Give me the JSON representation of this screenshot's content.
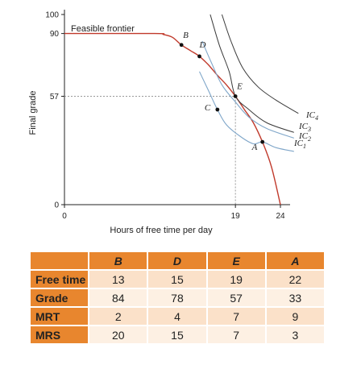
{
  "chart_data": {
    "type": "line",
    "ylabel": "Final grade",
    "xlabel": "Hours of free time per day",
    "xlim": [
      0,
      24
    ],
    "ylim": [
      0,
      100
    ],
    "x_ticks": [
      "0",
      "19",
      "24"
    ],
    "y_ticks": [
      "0",
      "57",
      "90",
      "100"
    ],
    "series": [
      {
        "name": "Feasible frontier",
        "points": [
          [
            0,
            90
          ],
          [
            10,
            90
          ],
          [
            11,
            89.5
          ],
          [
            12,
            88
          ],
          [
            13,
            84
          ],
          [
            14,
            81
          ],
          [
            15,
            78
          ],
          [
            16,
            73.5
          ],
          [
            17,
            68
          ],
          [
            18,
            63
          ],
          [
            19,
            57
          ],
          [
            20,
            50
          ],
          [
            21,
            43
          ],
          [
            22,
            33
          ],
          [
            23,
            20
          ],
          [
            24,
            0
          ]
        ]
      },
      {
        "name": "IC1",
        "points": [
          [
            15,
            70
          ],
          [
            16,
            60
          ],
          [
            17,
            50
          ],
          [
            18,
            42
          ],
          [
            19.5,
            36
          ],
          [
            21,
            32
          ],
          [
            22,
            33
          ],
          [
            23.5,
            30
          ],
          [
            25.5,
            28
          ]
        ]
      },
      {
        "name": "IC2",
        "points": [
          [
            15.3,
            86
          ],
          [
            16.3,
            75
          ],
          [
            17.5,
            63
          ],
          [
            19,
            54
          ],
          [
            20.5,
            46
          ],
          [
            22.5,
            40
          ],
          [
            25.5,
            35
          ]
        ]
      },
      {
        "name": "IC3",
        "points": [
          [
            16.2,
            100
          ],
          [
            17.2,
            84
          ],
          [
            18.3,
            70
          ],
          [
            19,
            57
          ],
          [
            20.5,
            50
          ],
          [
            22.5,
            43
          ],
          [
            25.5,
            38
          ]
        ]
      },
      {
        "name": "IC4",
        "points": [
          [
            17.5,
            100
          ],
          [
            18.5,
            86
          ],
          [
            19.8,
            72
          ],
          [
            21.5,
            62
          ],
          [
            23.5,
            55
          ],
          [
            26,
            48
          ]
        ]
      }
    ],
    "points": [
      {
        "label": "B",
        "x": 13,
        "y": 84
      },
      {
        "label": "D",
        "x": 15,
        "y": 78
      },
      {
        "label": "E",
        "x": 19,
        "y": 57
      },
      {
        "label": "C",
        "x": 17,
        "y": 50
      },
      {
        "label": "A",
        "x": 22,
        "y": 33
      }
    ],
    "ic_labels": [
      "IC",
      "IC",
      "IC",
      "IC"
    ],
    "ic_subscripts": [
      "1",
      "2",
      "3",
      "4"
    ],
    "guides": [
      {
        "x": 19,
        "y": 57
      }
    ]
  },
  "table": {
    "columns": [
      "B",
      "D",
      "E",
      "A"
    ],
    "rows": [
      {
        "label": "Free time",
        "values": [
          "13",
          "15",
          "19",
          "22"
        ]
      },
      {
        "label": "Grade",
        "values": [
          "84",
          "78",
          "57",
          "33"
        ]
      },
      {
        "label": "MRT",
        "values": [
          "2",
          "4",
          "7",
          "9"
        ]
      },
      {
        "label": "MRS",
        "values": [
          "20",
          "15",
          "7",
          "3"
        ]
      }
    ]
  },
  "colors": {
    "frontier": "#c0392b",
    "indifference_light": "#7fa6c9",
    "indifference_dark": "#3a3a3a",
    "table_header": "#e8862e",
    "table_cell_odd": "#fbe1c9",
    "table_cell_even": "#fdf0e3"
  }
}
